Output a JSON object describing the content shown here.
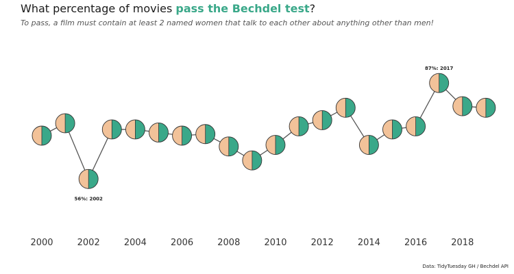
{
  "header": {
    "title_prefix": "What percentage of movies ",
    "title_highlight": "pass the Bechdel test",
    "title_suffix": "?",
    "subtitle": "To pass, a film must contain at least 2 named women that talk to each other about anything other than men!"
  },
  "caption": "Data: TidyTuesday GH / Bechdel API",
  "colors": {
    "pass": "#3aa889",
    "fail": "#f2c299",
    "line": "#555555",
    "highlight": "#3aa889"
  },
  "chart_data": {
    "type": "line",
    "marker": "half-filled circle (left half fail, right half pass)",
    "x": [
      2000,
      2001,
      2002,
      2003,
      2004,
      2005,
      2006,
      2007,
      2008,
      2009,
      2010,
      2011,
      2012,
      2013,
      2014,
      2015,
      2016,
      2017,
      2018,
      2019
    ],
    "values": [
      70,
      74,
      56,
      72,
      72,
      71,
      70,
      70.5,
      66.5,
      62,
      67,
      73,
      75,
      79,
      67,
      72,
      73,
      87,
      79.5,
      79
    ],
    "x_ticks": [
      2000,
      2002,
      2004,
      2006,
      2008,
      2010,
      2012,
      2014,
      2016,
      2018
    ],
    "y_axis_visible": false,
    "grid": false,
    "annotations": [
      {
        "x": 2002,
        "text": "56%: 2002",
        "position": "below"
      },
      {
        "x": 2017,
        "text": "87%: 2017",
        "position": "above"
      }
    ]
  }
}
